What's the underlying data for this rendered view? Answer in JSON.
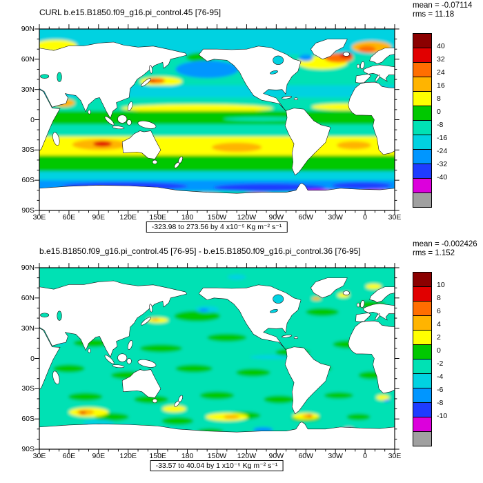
{
  "figure": {
    "background": "#ffffff",
    "variable": "CURL",
    "panel_count": 2
  },
  "chart_data": [
    {
      "type": "heatmap",
      "kind": "filled-contour world map, Pacific-centered cylindrical equidistant",
      "title": "CURL b.e15.B1850.f09_g16.pi_control.45 [76-95]",
      "stats_text": {
        "mean": "mean = -0.07114",
        "rms": "rms = 11.18"
      },
      "mean": -0.07114,
      "rms": 11.18,
      "caption": "-323.98 to 273.56 by 4 x10⁻⁵ Kg m⁻² s⁻¹",
      "data_min": -323.98,
      "data_max": 273.56,
      "contour_interval": 4,
      "units": "x10⁻⁵ Kg m⁻² s⁻¹",
      "xlabel_ticks": [
        "30E",
        "60E",
        "90E",
        "120E",
        "150E",
        "180",
        "150W",
        "120W",
        "90W",
        "60W",
        "30W",
        "0",
        "30E"
      ],
      "ylabel_ticks": [
        "90N",
        "60N",
        "30N",
        "0",
        "30S",
        "60S",
        "90S"
      ],
      "colorbar": {
        "labels": [
          "40",
          "32",
          "24",
          "16",
          "8",
          "0",
          "-8",
          "-16",
          "-24",
          "-32",
          "-40"
        ],
        "colors_top_to_bottom": [
          "#8b0000",
          "#e10000",
          "#ff6e00",
          "#ffb400",
          "#ffff00",
          "#00c800",
          "#00e1b4",
          "#00d2e1",
          "#0096ff",
          "#1e3cff",
          "#dc00dc",
          "#a0a0a0"
        ]
      }
    },
    {
      "type": "heatmap",
      "kind": "filled-contour difference map, Pacific-centered cylindrical equidistant",
      "title": "b.e15.B1850.f09_g16.pi_control.45 [76-95] - b.e15.B1850.f09_g16.pi_control.36 [76-95]",
      "stats_text": {
        "mean": "mean = -0.002426",
        "rms": "rms = 1.152"
      },
      "mean": -0.002426,
      "rms": 1.152,
      "caption": "-33.57 to 40.04 by 1 x10⁻⁵ Kg m⁻² s⁻¹",
      "data_min": -33.57,
      "data_max": 40.04,
      "contour_interval": 1,
      "units": "x10⁻⁵ Kg m⁻² s⁻¹",
      "xlabel_ticks": [
        "30E",
        "60E",
        "90E",
        "120E",
        "150E",
        "180",
        "150W",
        "120W",
        "90W",
        "60W",
        "30W",
        "0",
        "30E"
      ],
      "ylabel_ticks": [
        "90N",
        "60N",
        "30N",
        "0",
        "30S",
        "60S",
        "90S"
      ],
      "colorbar": {
        "labels": [
          "10",
          "8",
          "6",
          "4",
          "2",
          "0",
          "-2",
          "-4",
          "-6",
          "-8",
          "-10"
        ],
        "colors_top_to_bottom": [
          "#8b0000",
          "#e10000",
          "#ff6e00",
          "#ffb400",
          "#ffff00",
          "#00c800",
          "#00e1b4",
          "#00d2e1",
          "#0096ff",
          "#1e3cff",
          "#dc00dc",
          "#a0a0a0"
        ]
      }
    }
  ]
}
